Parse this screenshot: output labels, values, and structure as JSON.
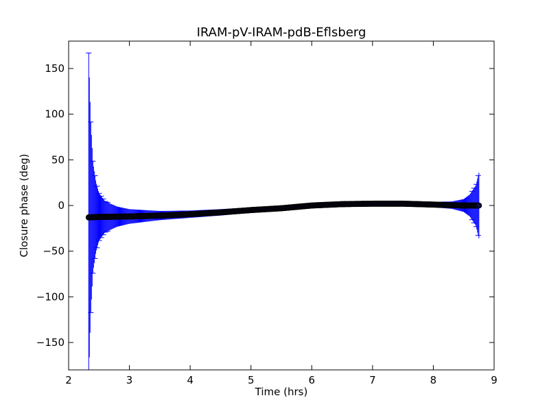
{
  "chart_data": {
    "type": "scatter",
    "title": "IRAM-pV-IRAM-pdB-Eflsberg",
    "xlabel": "Time (hrs)",
    "ylabel": "Closure phase (deg)",
    "xlim": [
      2,
      9
    ],
    "ylim": [
      -180,
      180
    ],
    "x_ticks": [
      2,
      3,
      4,
      5,
      6,
      7,
      8,
      9
    ],
    "x_tick_labels": [
      "2",
      "3",
      "4",
      "5",
      "6",
      "7",
      "8",
      "9"
    ],
    "y_ticks": [
      -150,
      -100,
      -50,
      0,
      50,
      100,
      150
    ],
    "y_tick_labels": [
      "−150",
      "−100",
      "−50",
      "0",
      "50",
      "100",
      "150"
    ],
    "grid": false,
    "colors": {
      "errorbar": "#0000ff",
      "marker": "#000000",
      "marker_face": "#0b0f3a"
    },
    "series": [
      {
        "x_range": [
          2.33,
          8.75
        ],
        "x_samples": [
          2.33,
          2.5,
          3.0,
          3.5,
          4.0,
          4.5,
          5.0,
          5.5,
          6.0,
          6.5,
          7.0,
          7.5,
          8.0,
          8.5,
          8.75
        ],
        "y_samples": [
          -13,
          -12.5,
          -12,
          -11,
          -9.5,
          -7.5,
          -5,
          -3,
          0,
          1.5,
          2,
          2,
          1,
          0,
          0
        ],
        "error_envelope": {
          "x": [
            2.33,
            2.36,
            2.4,
            2.45,
            2.5,
            2.6,
            2.8,
            3.0,
            3.5,
            4.0,
            5.0,
            6.0,
            7.0,
            8.0,
            8.3,
            8.5,
            8.6,
            8.7,
            8.75
          ],
          "err": [
            180,
            110,
            60,
            38,
            26,
            17,
            11,
            8,
            5,
            4,
            3,
            2.5,
            2.5,
            3,
            4,
            7,
            12,
            22,
            36
          ]
        }
      }
    ]
  }
}
